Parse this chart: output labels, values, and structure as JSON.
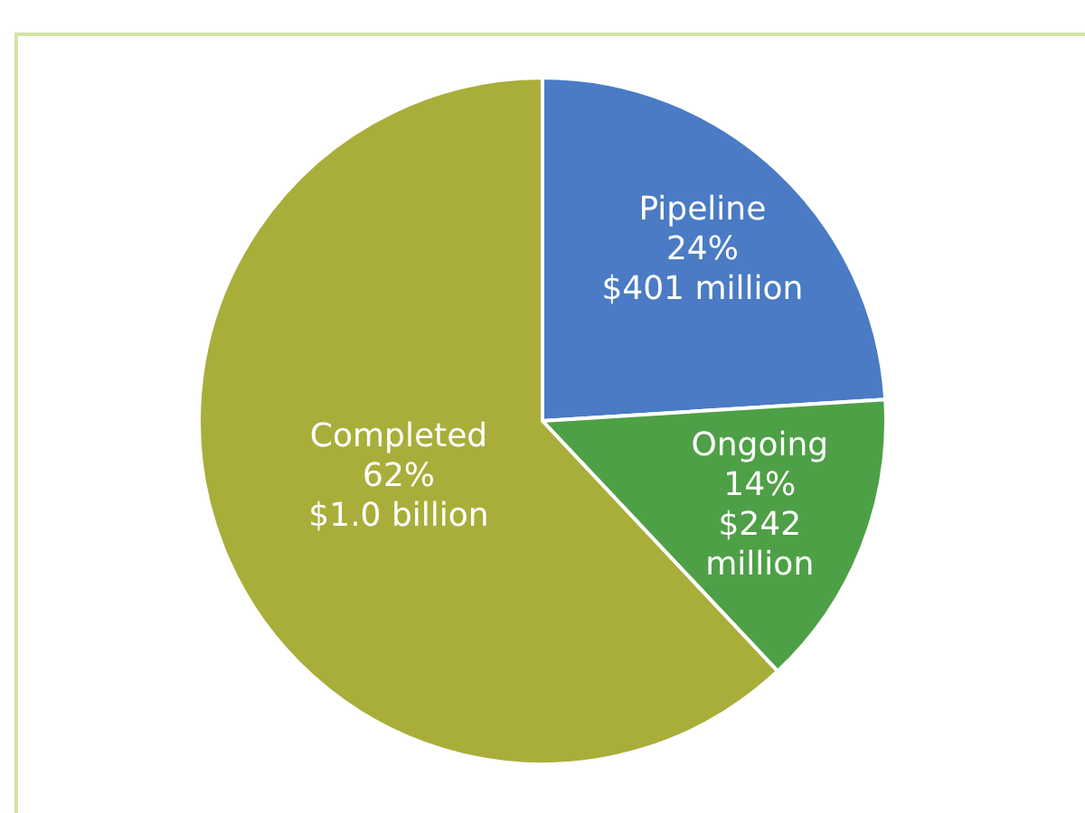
{
  "chart_data": {
    "type": "pie",
    "categories": [
      "Pipeline",
      "Ongoing",
      "Completed"
    ],
    "values": [
      24,
      14,
      62
    ],
    "colors": [
      "#4a7bc4",
      "#4ea046",
      "#a9ae3a"
    ],
    "value_labels": [
      "24%\n$401 million",
      "14%\n$242\nmillion",
      "62%\n$1.0 billion"
    ],
    "legend": false
  }
}
